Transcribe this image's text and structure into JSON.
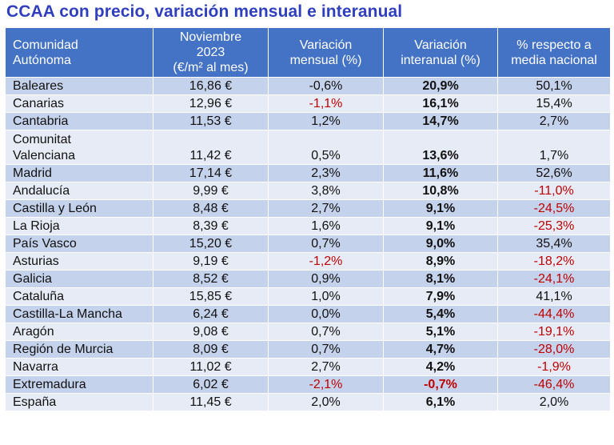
{
  "title": "CCAA con precio, variación mensual e interanual",
  "headers": {
    "col1_line1": "Comunidad",
    "col1_line2": "Autónoma",
    "col2_line1": "Noviembre",
    "col2_line2": "2023",
    "col2_line3": "(€/m² al mes)",
    "col3_line1": "Variación",
    "col3_line2": "mensual (%)",
    "col4_line1": "Variación",
    "col4_line2": "interanual (%)",
    "col5_line1": "% respecto a",
    "col5_line2": "media nacional"
  },
  "rows": [
    {
      "region": "Baleares",
      "price": "16,86 €",
      "monthly": "-0,6%",
      "yearly": "20,9%",
      "vs_national": "50,1%"
    },
    {
      "region": "Canarias",
      "price": "12,96 €",
      "monthly": "-1,1%",
      "yearly": "16,1%",
      "vs_national": "15,4%"
    },
    {
      "region": "Cantabria",
      "price": "11,53 €",
      "monthly": "1,2%",
      "yearly": "14,7%",
      "vs_national": "2,7%"
    },
    {
      "region_line1": "Comunitat",
      "region_line2": "Valenciana",
      "price": "11,42 €",
      "monthly": "0,5%",
      "yearly": "13,6%",
      "vs_national": "1,7%"
    },
    {
      "region": "Madrid",
      "price": "17,14 €",
      "monthly": "2,3%",
      "yearly": "11,6%",
      "vs_national": "52,6%"
    },
    {
      "region": "Andalucía",
      "price": "9,99 €",
      "monthly": "3,8%",
      "yearly": "10,8%",
      "vs_national": "-11,0%"
    },
    {
      "region": "Castilla y León",
      "price": "8,48 €",
      "monthly": "2,7%",
      "yearly": "9,1%",
      "vs_national": "-24,5%"
    },
    {
      "region": "La Rioja",
      "price": "8,39 €",
      "monthly": "1,6%",
      "yearly": "9,1%",
      "vs_national": "-25,3%"
    },
    {
      "region": "País Vasco",
      "price": "15,20 €",
      "monthly": "0,7%",
      "yearly": "9,0%",
      "vs_national": "35,4%"
    },
    {
      "region": "Asturias",
      "price": "9,19 €",
      "monthly": "-1,2%",
      "yearly": "8,9%",
      "vs_national": "-18,2%"
    },
    {
      "region": "Galicia",
      "price": "8,52 €",
      "monthly": "0,9%",
      "yearly": "8,1%",
      "vs_national": "-24,1%"
    },
    {
      "region": "Cataluña",
      "price": "15,85 €",
      "monthly": "1,0%",
      "yearly": "7,9%",
      "vs_national": "41,1%"
    },
    {
      "region": "Castilla-La Mancha",
      "price": "6,24 €",
      "monthly": "0,0%",
      "yearly": "5,4%",
      "vs_national": "-44,4%"
    },
    {
      "region": "Aragón",
      "price": "9,08 €",
      "monthly": "0,7%",
      "yearly": "5,1%",
      "vs_national": "-19,1%"
    },
    {
      "region": "Región de Murcia",
      "price": "8,09 €",
      "monthly": "0,7%",
      "yearly": "4,7%",
      "vs_national": "-28,0%"
    },
    {
      "region": "Navarra",
      "price": "11,02 €",
      "monthly": "2,7%",
      "yearly": "4,2%",
      "vs_national": "-1,9%"
    },
    {
      "region": "Extremadura",
      "price": "6,02 €",
      "monthly": "-2,1%",
      "yearly": "-0,7%",
      "vs_national": "-46,4%"
    },
    {
      "region": "España",
      "price": "11,45 €",
      "monthly": "2,0%",
      "yearly": "6,1%",
      "vs_national": "2,0%"
    }
  ],
  "colors": {
    "header_bg": "#4472c4",
    "row_dark": "#c5d2eb",
    "row_light": "#e6ebf6",
    "negative": "#c00000",
    "title": "#2f3fbf"
  }
}
